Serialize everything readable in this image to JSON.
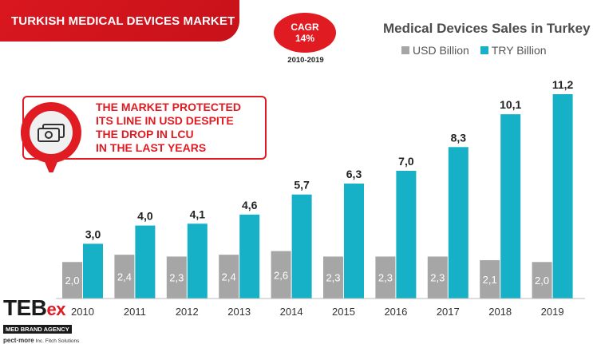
{
  "banner": {
    "title": "TURKISH MEDICAL DEVICES MARKET"
  },
  "cagr": {
    "label": "CAGR",
    "value": "14%",
    "period": "2010-2019"
  },
  "callout": {
    "lines": [
      "THE MARKET PROTECTED",
      "ITS LINE IN USD DESPITE",
      "THE DROP IN LCU",
      "IN THE LAST YEARS"
    ],
    "icon": "money-bill-icon"
  },
  "logo": {
    "brand_main": "TEB",
    "brand_suffix": "ex",
    "tagline": "MED BRAND AGENCY",
    "footer_brand": "pect·more",
    "footer_rest": "Inc. Fitch Solutions"
  },
  "colors": {
    "accent": "#e01b22",
    "usd": "#a6a6a6",
    "try": "#16b1c6"
  },
  "chart_data": {
    "type": "bar",
    "title": "Medical Devices Sales in Turkey",
    "categories": [
      "2010",
      "2011",
      "2012",
      "2013",
      "2014",
      "2015",
      "2016",
      "2017",
      "2018",
      "2019"
    ],
    "series": [
      {
        "name": "USD Billion",
        "values": [
          2.0,
          2.4,
          2.3,
          2.4,
          2.6,
          2.3,
          2.3,
          2.3,
          2.1,
          2.0
        ],
        "labels": [
          "2,0",
          "2,4",
          "2,3",
          "2,4",
          "2,6",
          "2,3",
          "2,3",
          "2,3",
          "2,1",
          "2,0"
        ]
      },
      {
        "name": "TRY Billion",
        "values": [
          3.0,
          4.0,
          4.1,
          4.6,
          5.7,
          6.3,
          7.0,
          8.3,
          10.1,
          11.2
        ],
        "labels": [
          "3,0",
          "4,0",
          "4,1",
          "4,6",
          "5,7",
          "6,3",
          "7,0",
          "8,3",
          "10,1",
          "11,2"
        ]
      }
    ],
    "xlabel": "",
    "ylabel": "",
    "ylim": [
      0,
      11.2
    ],
    "legend": "top-right",
    "grid": false
  }
}
